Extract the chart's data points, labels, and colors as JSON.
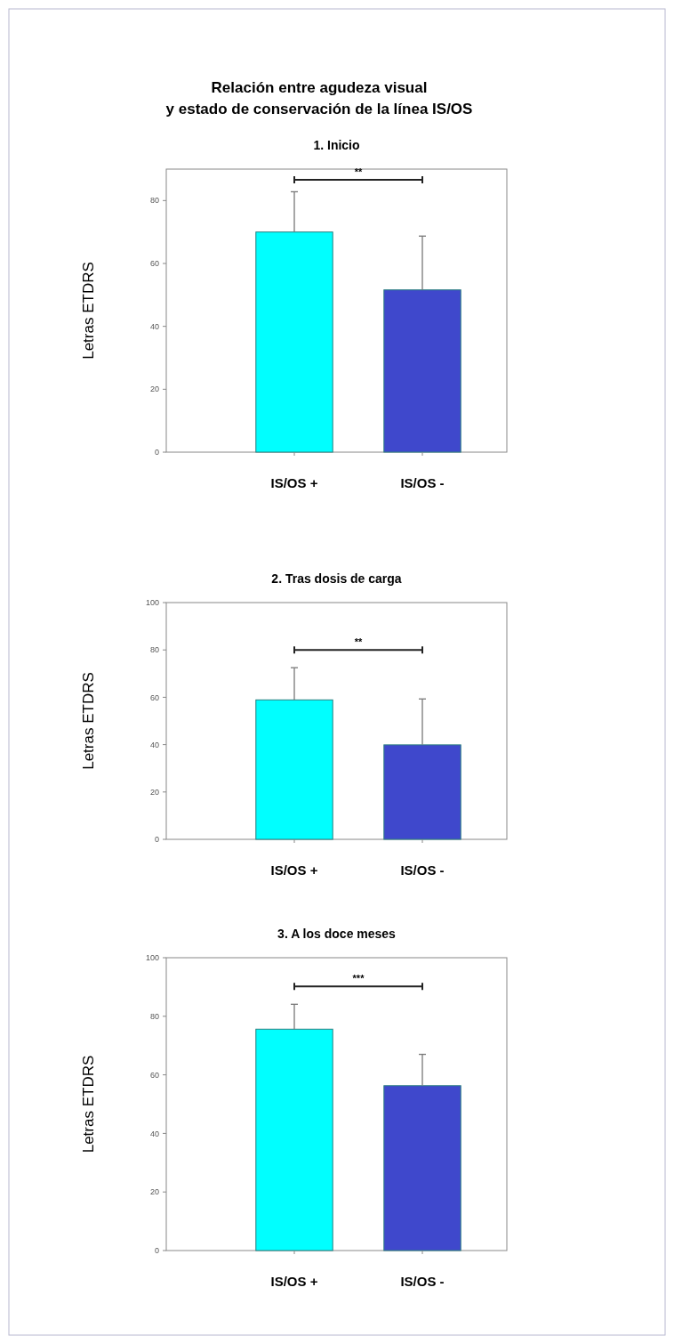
{
  "chart_data": [
    {
      "type": "bar",
      "title": "Relación entre agudeza visual\ny estado de conservación de la línea IS/OS",
      "subtitle": "1. Inicio",
      "ylabel": "Letras ETDRS",
      "categories": [
        "IS/OS +",
        "IS/OS -"
      ],
      "values": [
        70,
        51.6
      ],
      "colors": [
        "#00ffff",
        "#3f48cc"
      ],
      "errors": [
        [
          70,
          82.8
        ],
        [
          51.6,
          68.7
        ]
      ],
      "ylim": [
        0,
        90
      ],
      "yticks": [
        0,
        20,
        40,
        60,
        80
      ],
      "annotations": [
        "**"
      ]
    },
    {
      "type": "bar",
      "subtitle": "2. Tras dosis de carga",
      "ylabel": "Letras ETDRS",
      "categories": [
        "IS/OS +",
        "IS/OS -"
      ],
      "values": [
        58.9,
        39.9
      ],
      "colors": [
        "#00ffff",
        "#3f48cc"
      ],
      "errors": [
        [
          58.9,
          72.5
        ],
        [
          39.9,
          59.3
        ]
      ],
      "ylim": [
        0,
        100
      ],
      "yticks": [
        0,
        20,
        40,
        60,
        80,
        100
      ],
      "annotations": [
        "**"
      ]
    },
    {
      "type": "bar",
      "subtitle": "3. A los doce meses",
      "ylabel": "Letras ETDRS",
      "categories": [
        "IS/OS +",
        "IS/OS -"
      ],
      "values": [
        75.6,
        56.3
      ],
      "colors": [
        "#00ffff",
        "#3f48cc"
      ],
      "errors": [
        [
          75.6,
          84.1
        ],
        [
          56.3,
          67
        ]
      ],
      "ylim": [
        0,
        100
      ],
      "yticks": [
        0,
        20,
        40,
        60,
        80,
        100
      ],
      "annotations": [
        "***"
      ]
    }
  ]
}
